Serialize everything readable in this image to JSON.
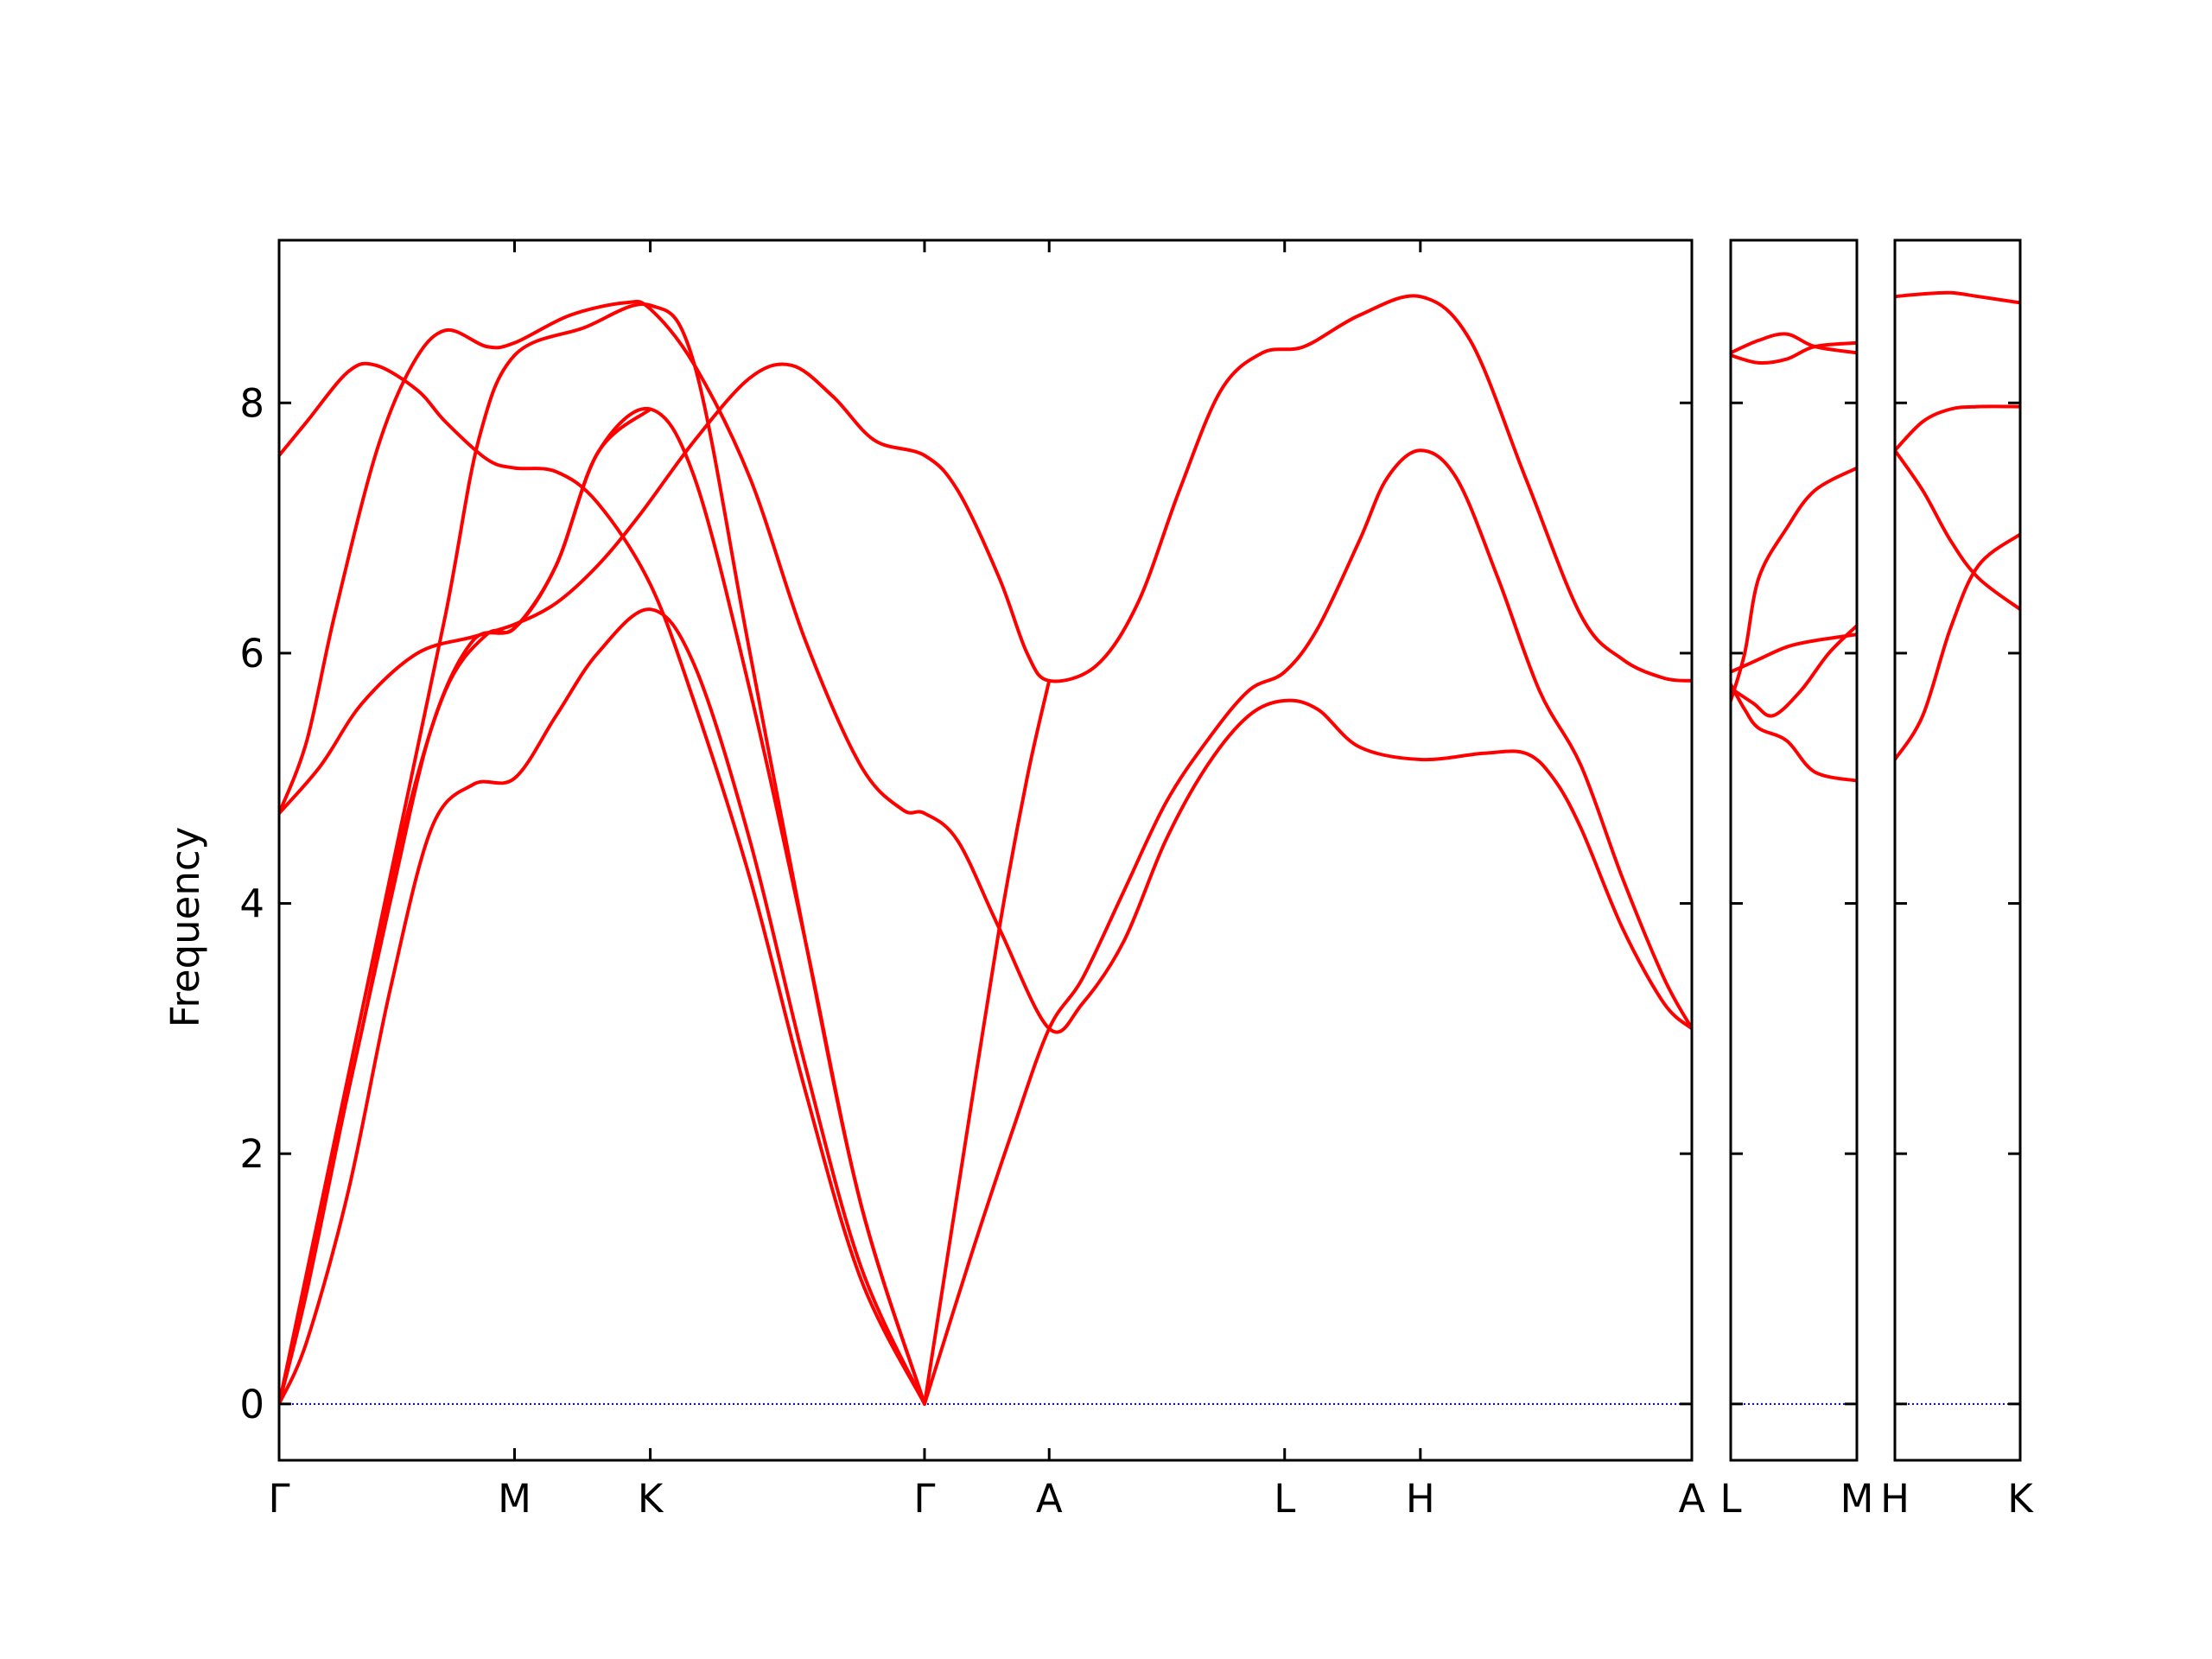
{
  "chart_data": {
    "type": "line",
    "title": "",
    "xlabel": "",
    "ylabel": "Frequency",
    "ylim": [
      -0.45,
      9.3
    ],
    "yticks": [
      0,
      2,
      4,
      6,
      8
    ],
    "grid": false,
    "legend": "none",
    "colors": {
      "bands": "#ff0000",
      "zero_line": "#0000cc",
      "axes": "#000000"
    },
    "panels": [
      {
        "xrange": [
          0,
          5.1
        ],
        "ticks": [
          {
            "x": 0,
            "label": "Γ"
          },
          {
            "x": 0.85,
            "label": "M"
          },
          {
            "x": 1.34,
            "label": "K"
          },
          {
            "x": 2.33,
            "label": "Γ"
          },
          {
            "x": 2.78,
            "label": "A"
          },
          {
            "x": 3.63,
            "label": "L"
          },
          {
            "x": 4.12,
            "label": "H"
          },
          {
            "x": 5.1,
            "label": "A"
          }
        ],
        "bands": [
          [
            [
              0,
              0
            ],
            [
              0.2,
              2.1
            ],
            [
              0.4,
              4.2
            ],
            [
              0.6,
              6.3
            ],
            [
              0.72,
              7.7
            ],
            [
              0.85,
              8.38
            ],
            [
              1.1,
              8.6
            ],
            [
              1.34,
              8.78
            ],
            [
              1.5,
              8.3
            ],
            [
              1.7,
              6.0
            ],
            [
              1.9,
              3.7
            ],
            [
              2.1,
              1.6
            ],
            [
              2.33,
              0
            ]
          ],
          [
            [
              0,
              0
            ],
            [
              0.1,
              0.9
            ],
            [
              0.25,
              2.5
            ],
            [
              0.4,
              4.0
            ],
            [
              0.55,
              5.4
            ],
            [
              0.7,
              6.1
            ],
            [
              0.85,
              6.2
            ],
            [
              1.0,
              6.7
            ],
            [
              1.15,
              7.6
            ],
            [
              1.34,
              7.95
            ],
            [
              1.5,
              7.4
            ],
            [
              1.7,
              5.7
            ],
            [
              1.9,
              3.7
            ],
            [
              2.1,
              1.6
            ],
            [
              2.33,
              0
            ]
          ],
          [
            [
              0,
              0
            ],
            [
              0.1,
              0.5
            ],
            [
              0.25,
              1.7
            ],
            [
              0.4,
              3.3
            ],
            [
              0.55,
              4.6
            ],
            [
              0.7,
              4.95
            ],
            [
              0.85,
              5.0
            ],
            [
              1.0,
              5.5
            ],
            [
              1.15,
              6.0
            ],
            [
              1.34,
              6.35
            ],
            [
              1.5,
              5.9
            ],
            [
              1.7,
              4.5
            ],
            [
              1.9,
              2.7
            ],
            [
              2.1,
              1.1
            ],
            [
              2.33,
              0
            ]
          ],
          [
            [
              0,
              4.72
            ],
            [
              0.15,
              5.1
            ],
            [
              0.3,
              5.6
            ],
            [
              0.5,
              6.0
            ],
            [
              0.7,
              6.13
            ],
            [
              0.85,
              6.23
            ],
            [
              1.0,
              6.4
            ],
            [
              1.15,
              6.7
            ],
            [
              1.3,
              7.1
            ],
            [
              1.5,
              7.7
            ],
            [
              1.7,
              8.2
            ],
            [
              1.85,
              8.3
            ],
            [
              2.0,
              8.05
            ],
            [
              2.15,
              7.7
            ],
            [
              2.33,
              7.58
            ],
            [
              2.45,
              7.3
            ],
            [
              2.6,
              6.6
            ],
            [
              2.7,
              6.0
            ],
            [
              2.78,
              5.78
            ],
            [
              2.95,
              5.9
            ],
            [
              3.1,
              6.4
            ],
            [
              3.25,
              7.3
            ],
            [
              3.4,
              8.1
            ],
            [
              3.55,
              8.4
            ],
            [
              3.7,
              8.45
            ],
            [
              3.9,
              8.7
            ],
            [
              4.12,
              8.85
            ],
            [
              4.3,
              8.5
            ],
            [
              4.5,
              7.4
            ],
            [
              4.7,
              6.3
            ],
            [
              4.85,
              5.95
            ],
            [
              5.0,
              5.8
            ],
            [
              5.1,
              5.78
            ]
          ],
          [
            [
              0,
              4.72
            ],
            [
              0.1,
              5.3
            ],
            [
              0.2,
              6.3
            ],
            [
              0.35,
              7.6
            ],
            [
              0.48,
              8.3
            ],
            [
              0.6,
              8.58
            ],
            [
              0.75,
              8.45
            ],
            [
              0.85,
              8.48
            ],
            [
              1.05,
              8.7
            ],
            [
              1.25,
              8.8
            ],
            [
              1.34,
              8.75
            ],
            [
              1.5,
              8.3
            ],
            [
              1.7,
              7.4
            ],
            [
              1.9,
              6.1
            ],
            [
              2.1,
              5.1
            ],
            [
              2.25,
              4.75
            ],
            [
              2.33,
              4.72
            ],
            [
              2.45,
              4.5
            ],
            [
              2.6,
              3.8
            ],
            [
              2.78,
              3.0
            ],
            [
              2.9,
              3.2
            ],
            [
              3.05,
              3.7
            ],
            [
              3.2,
              4.5
            ],
            [
              3.35,
              5.1
            ],
            [
              3.5,
              5.5
            ],
            [
              3.63,
              5.62
            ],
            [
              3.75,
              5.55
            ],
            [
              3.9,
              5.25
            ],
            [
              4.12,
              5.15
            ],
            [
              4.35,
              5.2
            ],
            [
              4.5,
              5.2
            ],
            [
              4.6,
              5.0
            ],
            [
              4.7,
              4.6
            ],
            [
              4.85,
              3.8
            ],
            [
              5.0,
              3.2
            ],
            [
              5.1,
              3.0
            ]
          ],
          [
            [
              0,
              7.58
            ],
            [
              0.1,
              7.85
            ],
            [
              0.25,
              8.25
            ],
            [
              0.35,
              8.3
            ],
            [
              0.5,
              8.1
            ],
            [
              0.6,
              7.85
            ],
            [
              0.75,
              7.55
            ],
            [
              0.85,
              7.48
            ],
            [
              1.0,
              7.45
            ],
            [
              1.15,
              7.2
            ],
            [
              1.34,
              6.55
            ],
            [
              1.5,
              5.6
            ],
            [
              1.7,
              4.2
            ],
            [
              1.9,
              2.5
            ],
            [
              2.1,
              1.0
            ],
            [
              2.33,
              0
            ]
          ],
          [
            [
              0,
              0
            ],
            [
              0.15,
              1.5
            ],
            [
              0.3,
              3.0
            ],
            [
              0.45,
              4.6
            ],
            [
              0.6,
              5.7
            ],
            [
              0.75,
              6.15
            ],
            [
              0.85,
              6.2
            ],
            [
              1.0,
              6.7
            ],
            [
              1.15,
              7.6
            ],
            [
              1.34,
              7.95
            ]
          ],
          [
            [
              2.33,
              0
            ],
            [
              2.45,
              1.7
            ],
            [
              2.6,
              3.8
            ],
            [
              2.7,
              5.0
            ],
            [
              2.78,
              5.78
            ]
          ],
          [
            [
              2.33,
              0
            ],
            [
              2.5,
              1.2
            ],
            [
              2.65,
              2.2
            ],
            [
              2.78,
              3.0
            ],
            [
              2.9,
              3.4
            ],
            [
              3.05,
              4.1
            ],
            [
              3.2,
              4.8
            ],
            [
              3.35,
              5.3
            ],
            [
              3.5,
              5.7
            ],
            [
              3.63,
              5.85
            ],
            [
              3.75,
              6.2
            ],
            [
              3.9,
              6.9
            ],
            [
              4.0,
              7.4
            ],
            [
              4.12,
              7.62
            ],
            [
              4.25,
              7.4
            ],
            [
              4.4,
              6.6
            ],
            [
              4.55,
              5.7
            ],
            [
              4.7,
              5.1
            ],
            [
              4.85,
              4.2
            ],
            [
              5.0,
              3.4
            ],
            [
              5.1,
              3.0
            ]
          ]
        ]
      },
      {
        "xrange": [
          0,
          0.45
        ],
        "ticks": [
          {
            "x": 0,
            "label": "L"
          },
          {
            "x": 0.45,
            "label": "M"
          }
        ],
        "bands": [
          [
            [
              0,
              8.4
            ],
            [
              0.1,
              8.5
            ],
            [
              0.2,
              8.55
            ],
            [
              0.3,
              8.45
            ],
            [
              0.45,
              8.4
            ]
          ],
          [
            [
              0,
              8.38
            ],
            [
              0.1,
              8.32
            ],
            [
              0.2,
              8.35
            ],
            [
              0.3,
              8.45
            ],
            [
              0.45,
              8.48
            ]
          ],
          [
            [
              0,
              5.62
            ],
            [
              0.05,
              6.0
            ],
            [
              0.1,
              6.6
            ],
            [
              0.2,
              7.0
            ],
            [
              0.3,
              7.3
            ],
            [
              0.45,
              7.48
            ]
          ],
          [
            [
              0,
              5.85
            ],
            [
              0.05,
              5.9
            ],
            [
              0.1,
              5.95
            ],
            [
              0.2,
              6.05
            ],
            [
              0.3,
              6.1
            ],
            [
              0.45,
              6.15
            ]
          ],
          [
            [
              0,
              5.75
            ],
            [
              0.05,
              5.55
            ],
            [
              0.1,
              5.4
            ],
            [
              0.2,
              5.3
            ],
            [
              0.3,
              5.05
            ],
            [
              0.45,
              4.98
            ]
          ],
          [
            [
              0,
              5.72
            ],
            [
              0.08,
              5.6
            ],
            [
              0.15,
              5.5
            ],
            [
              0.25,
              5.7
            ],
            [
              0.35,
              6.0
            ],
            [
              0.45,
              6.22
            ]
          ]
        ]
      },
      {
        "xrange": [
          0,
          0.45
        ],
        "ticks": [
          {
            "x": 0,
            "label": "H"
          },
          {
            "x": 0.45,
            "label": "K"
          }
        ],
        "bands": [
          [
            [
              0,
              8.85
            ],
            [
              0.1,
              8.87
            ],
            [
              0.2,
              8.88
            ],
            [
              0.3,
              8.85
            ],
            [
              0.45,
              8.8
            ]
          ],
          [
            [
              0,
              7.62
            ],
            [
              0.1,
              7.85
            ],
            [
              0.2,
              7.95
            ],
            [
              0.3,
              7.97
            ],
            [
              0.45,
              7.97
            ]
          ],
          [
            [
              0,
              7.62
            ],
            [
              0.1,
              7.3
            ],
            [
              0.2,
              6.9
            ],
            [
              0.3,
              6.6
            ],
            [
              0.45,
              6.35
            ]
          ],
          [
            [
              0,
              5.15
            ],
            [
              0.1,
              5.5
            ],
            [
              0.2,
              6.2
            ],
            [
              0.3,
              6.7
            ],
            [
              0.45,
              6.95
            ]
          ]
        ]
      }
    ]
  }
}
